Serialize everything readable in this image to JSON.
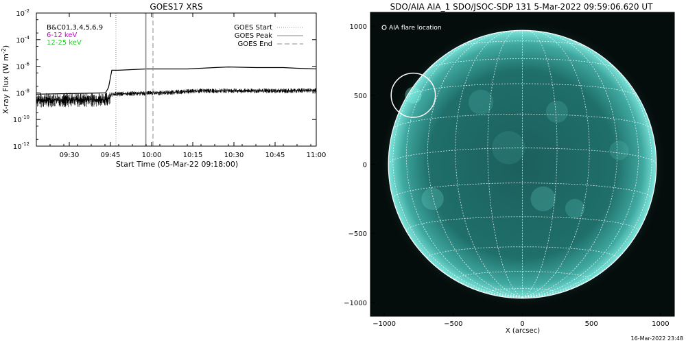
{
  "chart_data": [
    {
      "type": "line",
      "title": "GOES17 XRS",
      "xlabel": "Start Time (05-Mar-22 09:18:00)",
      "ylabel": "X-ray Flux (W m",
      "ylabel_sup": "-2",
      "ylabel_close": ")",
      "yscale": "log",
      "ylim_exp": [
        -12,
        -2
      ],
      "yticks_exp": [
        -12,
        -10,
        -8,
        -6,
        -4,
        -2
      ],
      "xlim_min": [
        0,
        102
      ],
      "xticks": [
        {
          "t": 12,
          "label": "09:30"
        },
        {
          "t": 27,
          "label": "09:45"
        },
        {
          "t": 42,
          "label": "10:00"
        },
        {
          "t": 57,
          "label": "10:15"
        },
        {
          "t": 72,
          "label": "10:30"
        },
        {
          "t": 87,
          "label": "10:45"
        },
        {
          "t": 102,
          "label": "11:00"
        }
      ],
      "legend_left": [
        {
          "text": "B&C01,3,4,5,6,9",
          "color": "#000000"
        },
        {
          "text": "6-12 keV",
          "color": "#cc00cc"
        },
        {
          "text": "12-25 keV",
          "color": "#22cc22"
        }
      ],
      "legend_right": [
        {
          "text": "GOES Start",
          "style": "dotted"
        },
        {
          "text": "GOES Peak",
          "style": "solid"
        },
        {
          "text": "GOES End",
          "style": "dashed"
        }
      ],
      "event_times": {
        "start": 29.0,
        "peak": 39.9,
        "end": 42.5
      },
      "series": [
        {
          "channel": "long",
          "points": [
            [
              0,
              -8.1
            ],
            [
              25.2,
              -8.0
            ],
            [
              26.3,
              -7.6
            ],
            [
              27.5,
              -6.3
            ],
            [
              30,
              -6.3
            ],
            [
              40,
              -6.2
            ],
            [
              55,
              -6.2
            ],
            [
              65,
              -6.1
            ],
            [
              70,
              -6.05
            ],
            [
              80,
              -6.1
            ],
            [
              90,
              -6.1
            ],
            [
              95,
              -6.15
            ],
            [
              102,
              -6.2
            ]
          ]
        },
        {
          "channel": "short",
          "points": [
            [
              0,
              -8.55
            ],
            [
              26,
              -8.5
            ],
            [
              27.5,
              -8.1
            ],
            [
              35,
              -8.05
            ],
            [
              45,
              -8.0
            ],
            [
              60,
              -7.85
            ],
            [
              75,
              -7.85
            ],
            [
              90,
              -7.85
            ],
            [
              102,
              -7.8
            ]
          ]
        }
      ]
    },
    {
      "type": "heatmap",
      "title": "SDO/AIA AIA_1 SDO/JSOC-SDP 131  5-Mar-2022 09:59:06.620 UT",
      "xlabel": "X (arcsec)",
      "ylabel": "",
      "xlim": [
        -1100,
        1100
      ],
      "ylim": [
        -1100,
        1100
      ],
      "xticks": [
        -1000,
        -500,
        0,
        500,
        1000
      ],
      "yticks": [
        -1000,
        -500,
        0,
        500,
        1000
      ],
      "legend": "AIA flare location",
      "solar_radius_arcsec": 970,
      "flare_location": {
        "x": -790,
        "y": 500
      },
      "grid_step_deg": 15,
      "colors": {
        "disk": "#2a8a86",
        "bright": "#66e0d6",
        "background": "#050d0c",
        "grid": "#ffffff"
      }
    }
  ],
  "footer_date": "16-Mar-2022 23:48"
}
